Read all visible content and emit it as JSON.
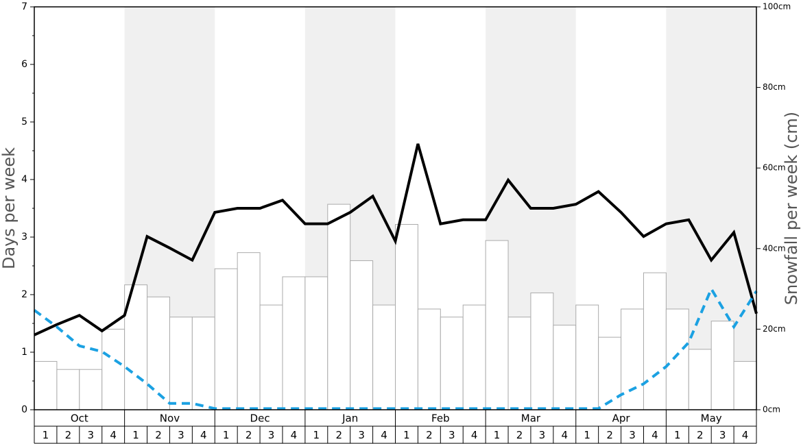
{
  "chart_data": {
    "type": "combo",
    "y_label": "Days per week",
    "y2_label": "Snowfall per week (cm)",
    "months": [
      "Oct",
      "Nov",
      "Dec",
      "Jan",
      "Feb",
      "Mar",
      "Apr",
      "May"
    ],
    "categories": [
      "1",
      "2",
      "3",
      "4",
      "1",
      "2",
      "3",
      "4",
      "1",
      "2",
      "3",
      "4",
      "1",
      "2",
      "3",
      "4",
      "1",
      "2",
      "3",
      "4",
      "1",
      "2",
      "3",
      "4",
      "1",
      "2",
      "3",
      "4",
      "1",
      "2",
      "3",
      "4"
    ],
    "xlim": [
      0,
      32
    ],
    "ylim": [
      0,
      7
    ],
    "yticks": [
      0,
      1,
      2,
      3,
      4,
      5,
      6,
      7
    ],
    "y2lim": [
      0,
      100
    ],
    "y2ticks": [
      {
        "value": 0,
        "label": "0cm"
      },
      {
        "value": 20,
        "label": "20cm"
      },
      {
        "value": 40,
        "label": "40cm"
      },
      {
        "value": 60,
        "label": "60cm"
      },
      {
        "value": 80,
        "label": "80cm"
      },
      {
        "value": 100,
        "label": "100cm"
      }
    ],
    "band_color": "#f0f0f0",
    "series": [
      {
        "type": "bar",
        "axis": "y2",
        "color": "#ffffff",
        "edge": "#aaaaaa",
        "values": [
          12,
          10,
          10,
          20,
          31,
          28,
          23,
          23,
          35,
          39,
          26,
          33,
          33,
          51,
          37,
          26,
          46,
          25,
          23,
          26,
          42,
          23,
          29,
          21,
          26,
          18,
          25,
          34,
          25,
          15,
          22,
          12
        ]
      },
      {
        "type": "line",
        "color": "#000000",
        "dashed": false,
        "x": [
          0,
          1,
          2,
          3,
          4,
          5,
          6,
          7,
          8,
          9,
          10,
          11,
          12,
          13,
          14,
          15,
          16,
          17,
          18,
          19,
          20,
          21,
          22,
          23,
          24,
          25,
          26,
          27,
          28,
          29,
          30,
          31,
          32
        ],
        "values": [
          1.3,
          1.48,
          1.64,
          1.37,
          1.64,
          3.01,
          2.81,
          2.6,
          3.43,
          3.5,
          3.5,
          3.64,
          3.23,
          3.23,
          3.43,
          3.71,
          2.93,
          4.62,
          3.23,
          3.3,
          3.3,
          3.99,
          3.5,
          3.5,
          3.57,
          3.79,
          3.43,
          3.01,
          3.23,
          3.3,
          2.6,
          3.08,
          1.67
        ]
      },
      {
        "type": "line",
        "color": "#1ba1e2",
        "dashed": true,
        "x": [
          0,
          1,
          2,
          3,
          4,
          5,
          6,
          7,
          8,
          9,
          10,
          11,
          12,
          13,
          14,
          15,
          16,
          17,
          18,
          19,
          20,
          21,
          22,
          23,
          24,
          25,
          26,
          27,
          28,
          29,
          30,
          31,
          32
        ],
        "values": [
          1.73,
          1.44,
          1.11,
          1.01,
          0.75,
          0.45,
          0.11,
          0.11,
          0.02,
          0.02,
          0.02,
          0.02,
          0.02,
          0.02,
          0.02,
          0.02,
          0.02,
          0.02,
          0.02,
          0.02,
          0.02,
          0.02,
          0.02,
          0.02,
          0.02,
          0.02,
          0.26,
          0.45,
          0.75,
          1.17,
          2.1,
          1.44,
          2.06
        ]
      }
    ]
  }
}
